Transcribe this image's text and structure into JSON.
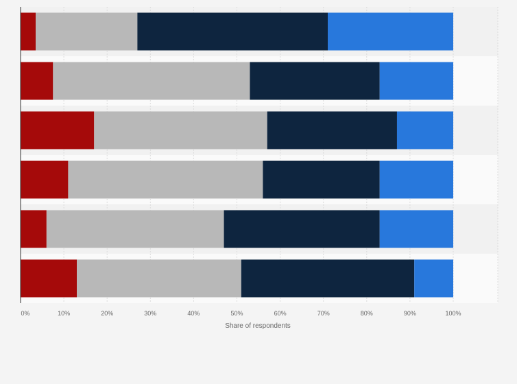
{
  "chart_data": {
    "type": "bar",
    "orientation": "horizontal",
    "stacked": true,
    "title": "",
    "xlabel": "Share of respondents",
    "ylabel": "",
    "xlim": [
      0,
      100
    ],
    "x_ticks": [
      "0%",
      "10%",
      "20%",
      "30%",
      "40%",
      "50%",
      "60%",
      "70%",
      "80%",
      "90%",
      "100%"
    ],
    "grid": true,
    "legend": "none",
    "categories": [
      "",
      "",
      "",
      "",
      "",
      ""
    ],
    "series": [
      {
        "values": [
          3.5,
          7.5,
          17,
          11,
          6,
          13
        ],
        "color": "#a50a0a"
      },
      {
        "values": [
          23.5,
          45.5,
          40,
          45,
          41,
          38
        ],
        "color": "#b8b8b8"
      },
      {
        "values": [
          44,
          30,
          30,
          27,
          36,
          40
        ],
        "color": "#0e253f"
      },
      {
        "values": [
          29,
          17,
          13,
          17,
          17,
          9
        ],
        "color": "#2878dc"
      }
    ]
  }
}
